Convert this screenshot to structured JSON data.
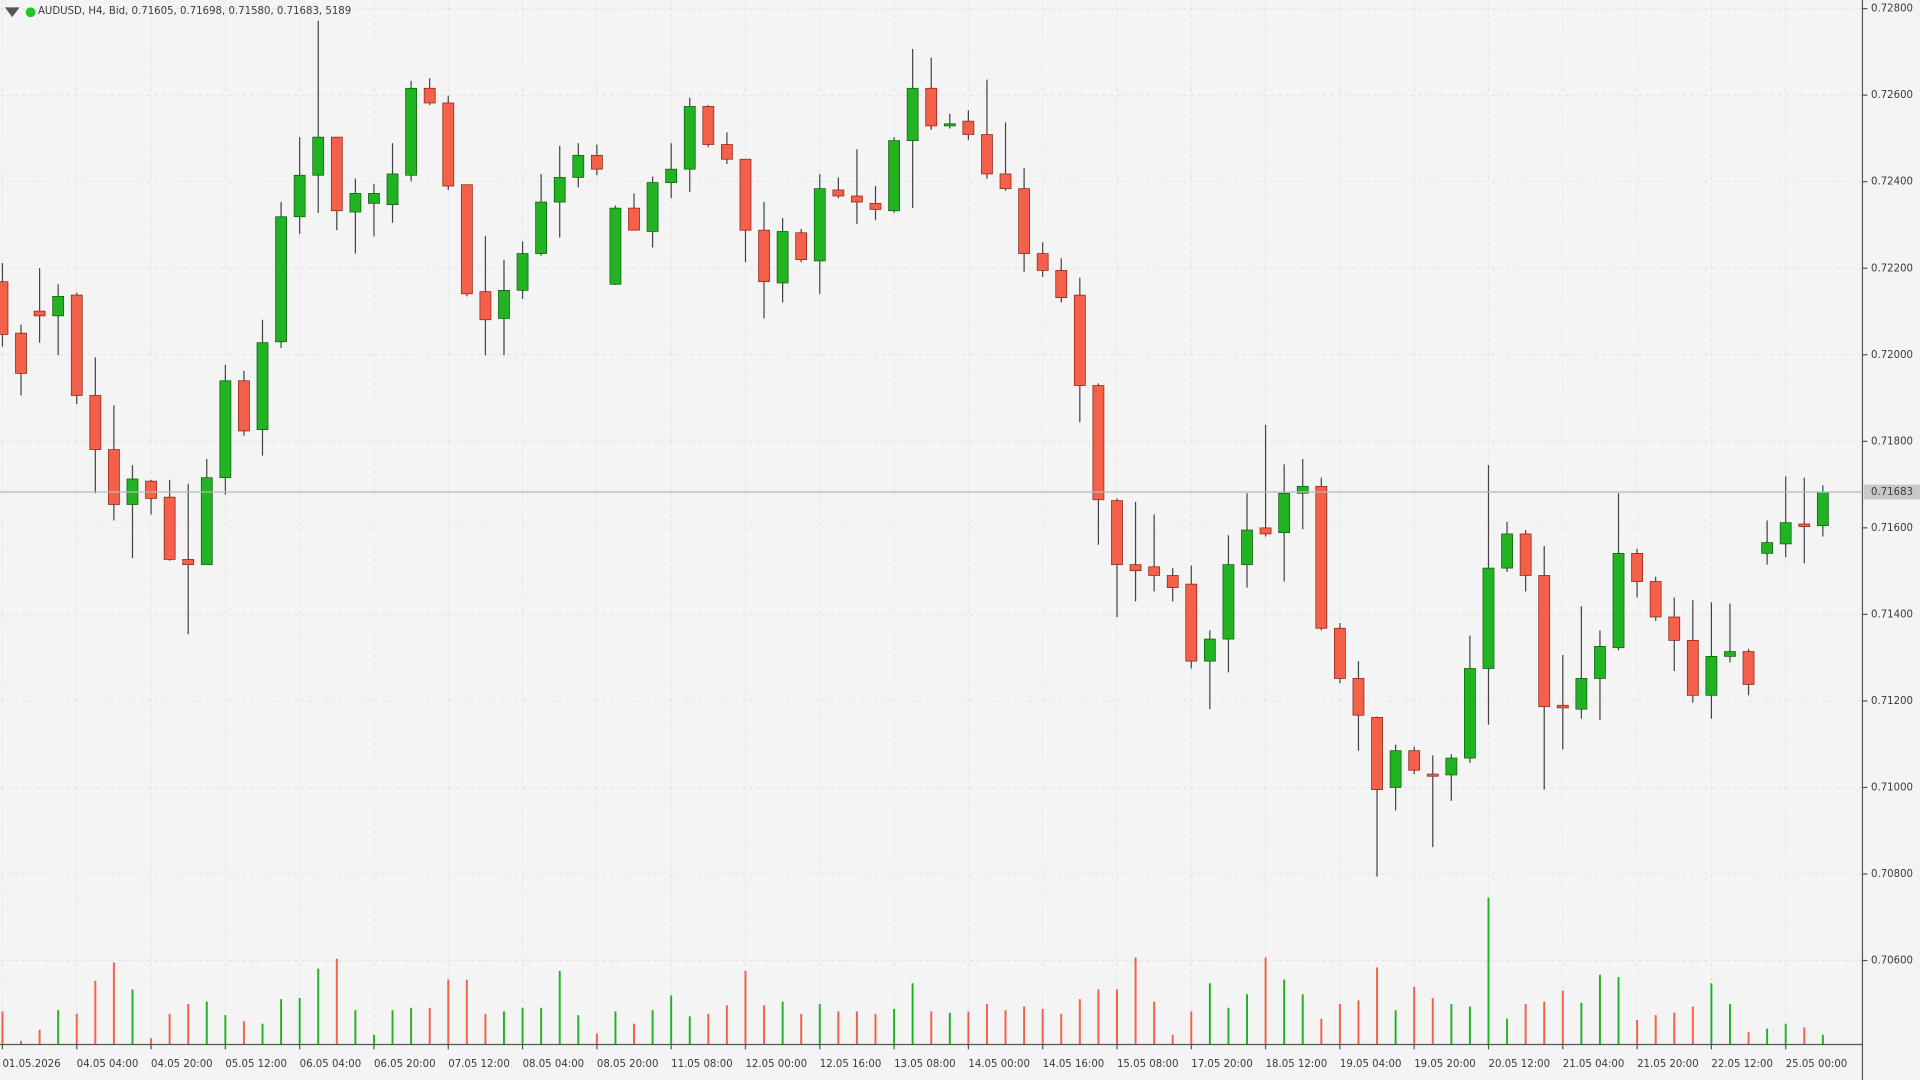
{
  "chart_data": {
    "type": "candlestick",
    "header": "AUDUSD, H4, Bid, 0.71605, 0.71698, 0.71580, 0.71683, 5189",
    "categories": [
      "01.05.2026",
      null,
      null,
      null,
      "04.05 04:00",
      null,
      null,
      null,
      "04.05 20:00",
      null,
      null,
      null,
      "05.05 12:00",
      null,
      null,
      null,
      "06.05 04:00",
      null,
      null,
      null,
      "06.05 20:00",
      null,
      null,
      null,
      "07.05 12:00",
      null,
      null,
      null,
      "08.05 04:00",
      null,
      null,
      null,
      "08.05 20:00",
      null,
      null,
      null,
      "11.05 08:00",
      null,
      null,
      null,
      "12.05 00:00",
      null,
      null,
      null,
      "12.05 16:00",
      null,
      null,
      null,
      "13.05 08:00",
      null,
      null,
      null,
      "14.05 00:00",
      null,
      null,
      null,
      "14.05 16:00",
      null,
      null,
      null,
      "15.05 08:00",
      null,
      null,
      null,
      "17.05 20:00",
      null,
      null,
      null,
      "18.05 12:00",
      null,
      null,
      null,
      "19.05 04:00",
      null,
      null,
      null,
      "19.05 20:00",
      null,
      null,
      null,
      "20.05 12:00",
      null,
      null,
      null,
      "21.05 04:00",
      null,
      null,
      null,
      "21.05 20:00",
      null,
      null,
      null,
      "22.05 12:00",
      null,
      null,
      null,
      "25.05 00:00",
      null,
      null
    ],
    "open": [
      0.72169,
      0.7205,
      0.72101,
      0.7209,
      0.72138,
      0.71906,
      0.71781,
      0.71654,
      0.71708,
      0.71671,
      0.71527,
      0.71515,
      0.71716,
      0.7194,
      0.71827,
      0.7203,
      0.72319,
      0.72415,
      0.72503,
      0.7233,
      0.7235,
      0.72347,
      0.72415,
      0.72616,
      0.72582,
      0.72393,
      0.72146,
      0.72084,
      0.72149,
      0.72234,
      0.72353,
      0.7241,
      0.72461,
      0.72163,
      0.72339,
      0.72285,
      0.72398,
      0.72429,
      0.72574,
      0.72486,
      0.72452,
      0.72288,
      0.72166,
      0.72282,
      0.72217,
      0.72381,
      0.72367,
      0.7235,
      0.72333,
      0.72495,
      0.72616,
      0.72529,
      0.7254,
      0.72509,
      0.72418,
      0.72384,
      0.72234,
      0.72195,
      0.72138,
      0.71929,
      0.71663,
      0.71515,
      0.7151,
      0.7149,
      0.7147,
      0.71292,
      0.71343,
      0.71515,
      0.716,
      0.71589,
      0.7168,
      0.71696,
      0.71368,
      0.71252,
      0.71162,
      0.71,
      0.71085,
      0.71031,
      0.71029,
      0.71068,
      0.71275,
      0.71507,
      0.71586,
      0.7149,
      0.7119,
      0.71181,
      0.71252,
      0.71323,
      0.71541,
      0.71476,
      0.71394,
      0.7134,
      0.71213,
      0.71303,
      0.71314,
      0.71541,
      0.71563,
      0.71609,
      0.71605
    ],
    "high": [
      0.72212,
      0.7207,
      0.722,
      0.72163,
      0.72144,
      0.71994,
      0.71883,
      0.71745,
      0.71711,
      0.71711,
      0.71702,
      0.71759,
      0.71977,
      0.71963,
      0.72081,
      0.72353,
      0.72503,
      0.72772,
      0.72503,
      0.72407,
      0.72395,
      0.72489,
      0.72633,
      0.72639,
      0.72599,
      0.72393,
      0.72274,
      0.7222,
      0.72262,
      0.72418,
      0.72483,
      0.72489,
      0.72486,
      0.72345,
      0.72373,
      0.72412,
      0.72489,
      0.72594,
      0.72577,
      0.72514,
      0.72452,
      0.72353,
      0.72316,
      0.72291,
      0.72418,
      0.7241,
      0.72475,
      0.7239,
      0.72503,
      0.72707,
      0.72687,
      0.72557,
      0.72565,
      0.72636,
      0.72537,
      0.72432,
      0.7226,
      0.72223,
      0.72178,
      0.71934,
      0.71668,
      0.7166,
      0.71631,
      0.71507,
      0.71513,
      0.71363,
      0.71583,
      0.7168,
      0.71838,
      0.71747,
      0.71759,
      0.71716,
      0.7138,
      0.71292,
      0.71164,
      0.71099,
      0.71094,
      0.71074,
      0.71077,
      0.71351,
      0.71745,
      0.71614,
      0.71595,
      0.71558,
      0.71306,
      0.71419,
      0.71363,
      0.7168,
      0.71552,
      0.71487,
      0.71439,
      0.71433,
      0.71428,
      0.71425,
      0.7132,
      0.71617,
      0.71719,
      0.71716,
      0.71698
    ],
    "low": [
      0.72019,
      0.71906,
      0.72028,
      0.71999,
      0.71886,
      0.7168,
      0.71617,
      0.7153,
      0.71631,
      0.71524,
      0.71354,
      0.71515,
      0.71677,
      0.71813,
      0.71767,
      0.72016,
      0.72279,
      0.72328,
      0.72288,
      0.72234,
      0.72274,
      0.72305,
      0.72401,
      0.72577,
      0.72381,
      0.72135,
      0.71999,
      0.71999,
      0.72129,
      0.72229,
      0.72271,
      0.72387,
      0.72415,
      0.72161,
      0.72288,
      0.72248,
      0.72362,
      0.72376,
      0.7248,
      0.72441,
      0.72214,
      0.72084,
      0.72121,
      0.72214,
      0.72141,
      0.72362,
      0.72302,
      0.72311,
      0.72328,
      0.72339,
      0.7252,
      0.72523,
      0.72497,
      0.72407,
      0.72379,
      0.72192,
      0.7218,
      0.72121,
      0.71844,
      0.71561,
      0.71394,
      0.7143,
      0.71453,
      0.7143,
      0.71275,
      0.71181,
      0.71266,
      0.71462,
      0.7158,
      0.71476,
      0.71597,
      0.71363,
      0.71241,
      0.71085,
      0.70794,
      0.70947,
      0.71031,
      0.70862,
      0.70969,
      0.71057,
      0.71145,
      0.71498,
      0.71453,
      0.70995,
      0.71088,
      0.71159,
      0.71156,
      0.71317,
      0.71439,
      0.71385,
      0.71269,
      0.71196,
      0.71159,
      0.71289,
      0.71213,
      0.71515,
      0.71532,
      0.71518,
      0.7158
    ],
    "close": [
      0.72047,
      0.71957,
      0.7209,
      0.72135,
      0.71906,
      0.71781,
      0.71654,
      0.71713,
      0.71668,
      0.71527,
      0.71515,
      0.71716,
      0.7194,
      0.71824,
      0.72028,
      0.72319,
      0.72415,
      0.72503,
      0.72333,
      0.72373,
      0.72373,
      0.72418,
      0.72616,
      0.72582,
      0.7239,
      0.72141,
      0.72081,
      0.72149,
      0.72234,
      0.72353,
      0.7241,
      0.72461,
      0.72429,
      0.72339,
      0.72288,
      0.72398,
      0.72429,
      0.72574,
      0.72486,
      0.72452,
      0.72288,
      0.72169,
      0.72285,
      0.7222,
      0.72384,
      0.72367,
      0.72353,
      0.72336,
      0.72495,
      0.72616,
      0.72529,
      0.72534,
      0.72509,
      0.72418,
      0.72384,
      0.72234,
      0.72195,
      0.72132,
      0.71929,
      0.71665,
      0.71515,
      0.71501,
      0.7149,
      0.71462,
      0.71292,
      0.71343,
      0.71515,
      0.71595,
      0.71586,
      0.7168,
      0.71696,
      0.71368,
      0.71252,
      0.71167,
      0.70995,
      0.71085,
      0.7104,
      0.71026,
      0.71068,
      0.71275,
      0.71507,
      0.71586,
      0.7149,
      0.71187,
      0.71184,
      0.71252,
      0.71326,
      0.71541,
      0.71476,
      0.71394,
      0.7134,
      0.71213,
      0.71303,
      0.71314,
      0.71238,
      0.71566,
      0.71612,
      0.71603,
      0.71683
    ],
    "volume": [
      17550,
      1950,
      7800,
      18200,
      16250,
      33800,
      43550,
      29250,
      3250,
      16250,
      21450,
      22750,
      15600,
      12350,
      11050,
      24050,
      24700,
      40300,
      45500,
      18200,
      5200,
      18200,
      19500,
      19500,
      34450,
      34450,
      16250,
      17550,
      19500,
      19500,
      39000,
      15600,
      5850,
      17550,
      11050,
      18200,
      26000,
      14950,
      16250,
      20800,
      39000,
      20800,
      22750,
      16250,
      21450,
      17550,
      17550,
      16250,
      18850,
      32500,
      17550,
      16900,
      17550,
      21450,
      18200,
      20150,
      18850,
      16250,
      24050,
      29250,
      29250,
      46150,
      22750,
      5200,
      17550,
      32500,
      19500,
      26650,
      46150,
      34450,
      26650,
      13650,
      21450,
      23400,
      40950,
      18200,
      30550,
      24700,
      21450,
      20150,
      78000,
      13650,
      21450,
      22750,
      28600,
      22100,
      37050,
      35750,
      13000,
      15600,
      16900,
      20150,
      32500,
      21450,
      6500,
      8450,
      11050,
      9100,
      5189
    ],
    "up_color": "#22b322",
    "down_color": "#f4604a",
    "ylim": [
      0.70406,
      0.7282
    ],
    "yticks": [
      {
        "value": 0.728,
        "label": "0.72800"
      },
      {
        "value": 0.726,
        "label": "0.72600"
      },
      {
        "value": 0.724,
        "label": "0.72400"
      },
      {
        "value": 0.722,
        "label": "0.72200"
      },
      {
        "value": 0.72,
        "label": "0.72000"
      },
      {
        "value": 0.718,
        "label": "0.71800"
      },
      {
        "value": 0.716,
        "label": "0.71600"
      },
      {
        "value": 0.714,
        "label": "0.71400"
      },
      {
        "value": 0.712,
        "label": "0.71200"
      },
      {
        "value": 0.71,
        "label": "0.71000"
      },
      {
        "value": 0.708,
        "label": "0.70800"
      },
      {
        "value": 0.706,
        "label": "0.70600"
      }
    ],
    "bid_line": {
      "value": 0.71683,
      "label": "0.71683"
    },
    "grid": true
  }
}
